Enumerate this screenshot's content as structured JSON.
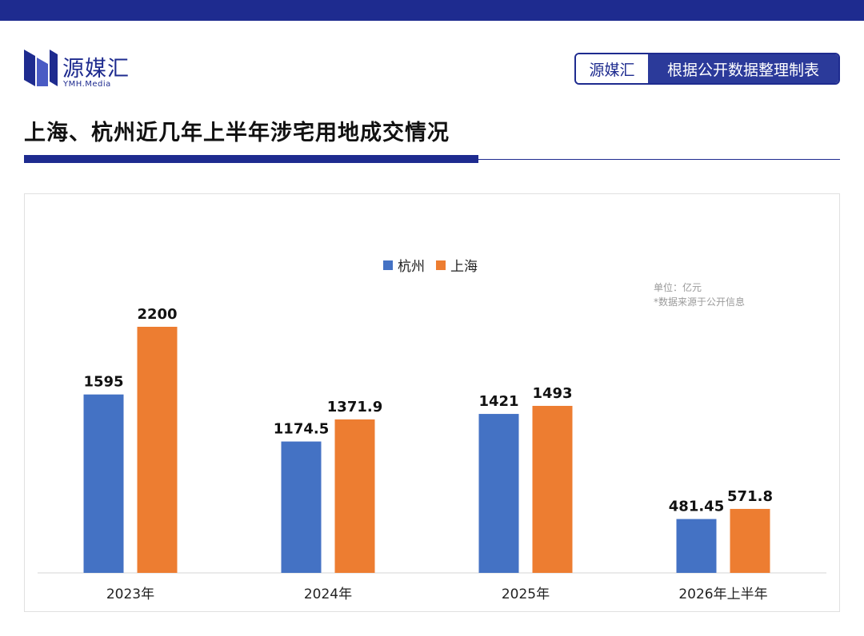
{
  "header": {
    "brand_name": "源媒汇",
    "brand_sub": "YMH.Media",
    "badge_left": "源媒汇",
    "badge_right": "根据公开数据整理制表"
  },
  "page": {
    "title": "上海、杭州近几年上半年涉宅用地成交情况"
  },
  "colors": {
    "accent": "#1e2b8f",
    "hangzhou": "#4472c4",
    "shanghai": "#ed7d31"
  },
  "chart_data": {
    "type": "bar",
    "title": "",
    "xlabel": "",
    "ylabel": "",
    "categories": [
      "2023年",
      "2024年",
      "2025年",
      "2026年上半年"
    ],
    "series": [
      {
        "name": "杭州",
        "values": [
          1595,
          1174.5,
          1421,
          481.45
        ],
        "labels": [
          "1595",
          "1174.5",
          "1421",
          "481.45"
        ]
      },
      {
        "name": "上海",
        "values": [
          2200,
          1371.9,
          1493,
          571.8
        ],
        "labels": [
          "2200",
          "1371.9",
          "1493",
          "571.8"
        ]
      }
    ],
    "ylim": [
      0,
      2500
    ],
    "legend": "top-center",
    "grid": false,
    "notes": [
      "单位：亿元",
      "*数据来源于公开信息"
    ]
  }
}
